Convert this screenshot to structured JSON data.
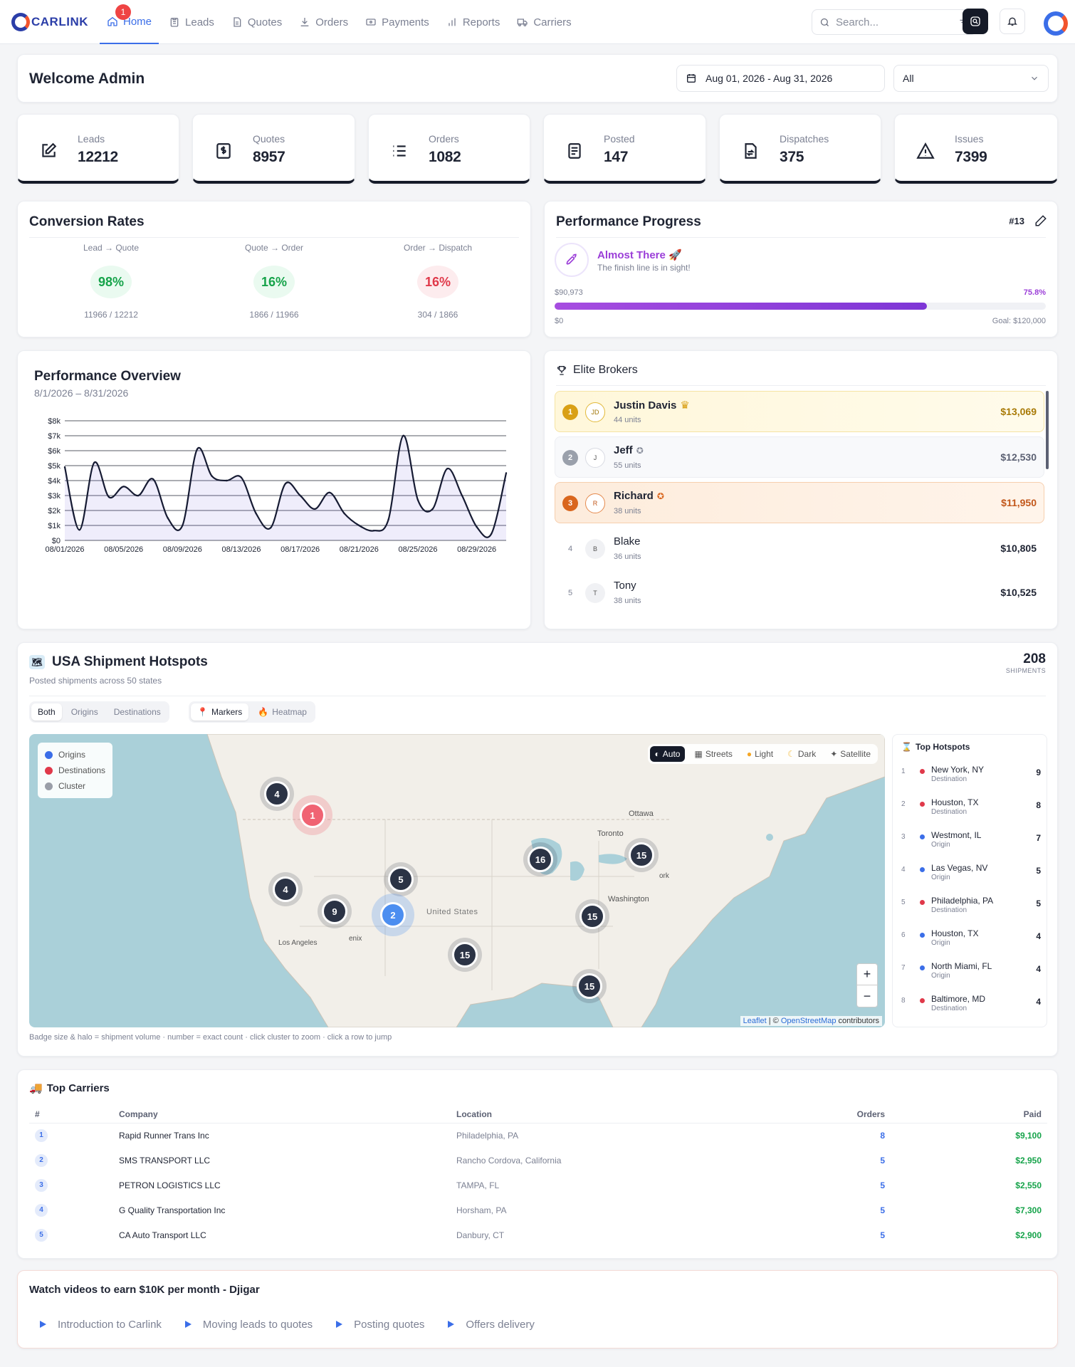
{
  "app": {
    "brand": "CARLINK"
  },
  "nav": [
    {
      "label": "Home",
      "icon": "home-icon",
      "active": true
    },
    {
      "label": "Leads",
      "icon": "clipboard-icon",
      "badge": "1"
    },
    {
      "label": "Quotes",
      "icon": "file-icon"
    },
    {
      "label": "Orders",
      "icon": "download-icon"
    },
    {
      "label": "Payments",
      "icon": "payments-icon"
    },
    {
      "label": "Reports",
      "icon": "bar-chart-icon"
    },
    {
      "label": "Carriers",
      "icon": "truck-icon"
    }
  ],
  "search": {
    "placeholder": "Search..."
  },
  "welcome": {
    "title": "Welcome Admin",
    "date_range": "Aug 01, 2026 - Aug 31, 2026",
    "filter_value": "All"
  },
  "stats": [
    {
      "label": "Leads",
      "value": "12212",
      "icon": "edit-icon"
    },
    {
      "label": "Quotes",
      "value": "8957",
      "icon": "dollar-file-icon"
    },
    {
      "label": "Orders",
      "value": "1082",
      "icon": "list-icon"
    },
    {
      "label": "Posted",
      "value": "147",
      "icon": "document-icon"
    },
    {
      "label": "Dispatches",
      "value": "375",
      "icon": "file-transfer-icon"
    },
    {
      "label": "Issues",
      "value": "7399",
      "icon": "warning-icon"
    }
  ],
  "conversion": {
    "title": "Conversion Rates",
    "items": [
      {
        "label": "Lead → Quote",
        "pct": "98%",
        "ratio": "11966 / 12212",
        "color": "#16a34a",
        "bg": "#eafaf0"
      },
      {
        "label": "Quote → Order",
        "pct": "16%",
        "ratio": "1866 / 11966",
        "color": "#16a34a",
        "bg": "#eafaf0"
      },
      {
        "label": "Order → Dispatch",
        "pct": "16%",
        "ratio": "304 / 1866",
        "color": "#e0394a",
        "bg": "#fdecee"
      }
    ]
  },
  "progress": {
    "title": "Performance Progress",
    "rank": "#13",
    "headline": "Almost There",
    "subline": "The finish line is in sight!",
    "current": "$90,973",
    "percent_label": "75.8%",
    "percent": 75.8,
    "start": "$0",
    "goal": "Goal: $120,000"
  },
  "overview": {
    "title": "Performance Overview",
    "range": "8/1/2026 – 8/31/2026"
  },
  "chart_data": {
    "type": "line",
    "xlabel": "",
    "ylabel": "",
    "ylim": [
      0,
      8000
    ],
    "yticks": [
      "$0",
      "$1k",
      "$2k",
      "$3k",
      "$4k",
      "$5k",
      "$6k",
      "$7k",
      "$8k"
    ],
    "xticks": [
      "08/01/2026",
      "08/05/2026",
      "08/09/2026",
      "08/13/2026",
      "08/17/2026",
      "08/21/2026",
      "08/25/2026",
      "08/29/2026"
    ],
    "x": [
      "08/01",
      "08/02",
      "08/03",
      "08/04",
      "08/05",
      "08/06",
      "08/07",
      "08/08",
      "08/09",
      "08/10",
      "08/11",
      "08/12",
      "08/13",
      "08/14",
      "08/15",
      "08/16",
      "08/17",
      "08/18",
      "08/19",
      "08/20",
      "08/21",
      "08/22",
      "08/23",
      "08/24",
      "08/25",
      "08/26",
      "08/27",
      "08/28",
      "08/29",
      "08/30",
      "08/31"
    ],
    "values": [
      4900,
      700,
      5200,
      2900,
      3600,
      3000,
      4100,
      1500,
      1000,
      6100,
      4300,
      4000,
      4200,
      1800,
      850,
      3800,
      3000,
      2100,
      3200,
      1800,
      1000,
      650,
      1400,
      7000,
      2700,
      2100,
      4800,
      3000,
      900,
      450,
      4500
    ]
  },
  "elite": {
    "title": "Elite Brokers",
    "rows": [
      {
        "rank": "1",
        "initials": "JD",
        "name": "Justin Davis",
        "units": "44 units",
        "amount": "$13,069",
        "badge": "crown-icon"
      },
      {
        "rank": "2",
        "initials": "J",
        "name": "Jeff",
        "units": "55 units",
        "amount": "$12,530",
        "badge": "medal-icon"
      },
      {
        "rank": "3",
        "initials": "R",
        "name": "Richard",
        "units": "38 units",
        "amount": "$11,950",
        "badge": "medal-icon"
      },
      {
        "rank": "4",
        "initials": "B",
        "name": "Blake",
        "units": "36 units",
        "amount": "$10,805"
      },
      {
        "rank": "5",
        "initials": "T",
        "name": "Tony",
        "units": "38 units",
        "amount": "$10,525"
      }
    ]
  },
  "hotspots": {
    "title": "USA Shipment Hotspots",
    "subtitle": "Posted shipments across 50 states",
    "count": "208",
    "count_label": "SHIPMENTS",
    "filters": [
      "Both",
      "Origins",
      "Destinations"
    ],
    "modes": [
      "Markers",
      "Heatmap"
    ],
    "legend": [
      {
        "label": "Origins",
        "color": "#3b6ee8"
      },
      {
        "label": "Destinations",
        "color": "#e0394a"
      },
      {
        "label": "Cluster",
        "color": "#9a9ea8"
      }
    ],
    "tiles": [
      "Auto",
      "Streets",
      "Light",
      "Dark",
      "Satellite"
    ],
    "map_labels": {
      "ottawa": "Ottawa",
      "toronto": "Toronto",
      "washington": "Washington",
      "us": "United States",
      "la": "Los Angeles",
      "phoenix": "enix",
      "york": "ork"
    },
    "clusters": [
      "4",
      "1",
      "4",
      "5",
      "9",
      "2",
      "16",
      "15",
      "15",
      "15",
      "15"
    ],
    "zoom_in": "+",
    "zoom_out": "−",
    "attribution": {
      "leaflet": "Leaflet",
      "sep": " | © ",
      "osm": "OpenStreetMap",
      "rest": " contributors"
    },
    "note": "Badge size & halo = shipment volume · number = exact count · click cluster to zoom · click a row to jump",
    "top_title": "Top Hotspots",
    "top": [
      {
        "rank": "1",
        "city": "New York, NY",
        "kind": "Destination",
        "count": "9",
        "color": "#e0394a"
      },
      {
        "rank": "2",
        "city": "Houston, TX",
        "kind": "Destination",
        "count": "8",
        "color": "#e0394a"
      },
      {
        "rank": "3",
        "city": "Westmont, IL",
        "kind": "Origin",
        "count": "7",
        "color": "#3b6ee8"
      },
      {
        "rank": "4",
        "city": "Las Vegas, NV",
        "kind": "Origin",
        "count": "5",
        "color": "#3b6ee8"
      },
      {
        "rank": "5",
        "city": "Philadelphia, PA",
        "kind": "Destination",
        "count": "5",
        "color": "#e0394a"
      },
      {
        "rank": "6",
        "city": "Houston, TX",
        "kind": "Origin",
        "count": "4",
        "color": "#3b6ee8"
      },
      {
        "rank": "7",
        "city": "North Miami, FL",
        "kind": "Origin",
        "count": "4",
        "color": "#3b6ee8"
      },
      {
        "rank": "8",
        "city": "Baltimore, MD",
        "kind": "Destination",
        "count": "4",
        "color": "#e0394a"
      }
    ]
  },
  "carriers": {
    "title": "Top Carriers",
    "columns": [
      "#",
      "Company",
      "Location",
      "Orders",
      "Paid"
    ],
    "rows": [
      {
        "n": "1",
        "company": "Rapid Runner Trans Inc",
        "location": "Philadelphia, PA",
        "orders": "8",
        "paid": "$9,100"
      },
      {
        "n": "2",
        "company": "SMS TRANSPORT LLC",
        "location": "Rancho Cordova, California",
        "orders": "5",
        "paid": "$2,950"
      },
      {
        "n": "3",
        "company": "PETRON LOGISTICS LLC",
        "location": "TAMPA, FL",
        "orders": "5",
        "paid": "$2,550"
      },
      {
        "n": "4",
        "company": "G Quality Transportation Inc",
        "location": "Horsham, PA",
        "orders": "5",
        "paid": "$7,300"
      },
      {
        "n": "5",
        "company": "CA Auto Transport LLC",
        "location": "Danbury, CT",
        "orders": "5",
        "paid": "$2,900"
      }
    ]
  },
  "videos": {
    "title": "Watch videos to earn $10K per month - Djigar",
    "items": [
      "Introduction to Carlink",
      "Moving leads to quotes",
      "Posting quotes",
      "Offers delivery"
    ]
  }
}
